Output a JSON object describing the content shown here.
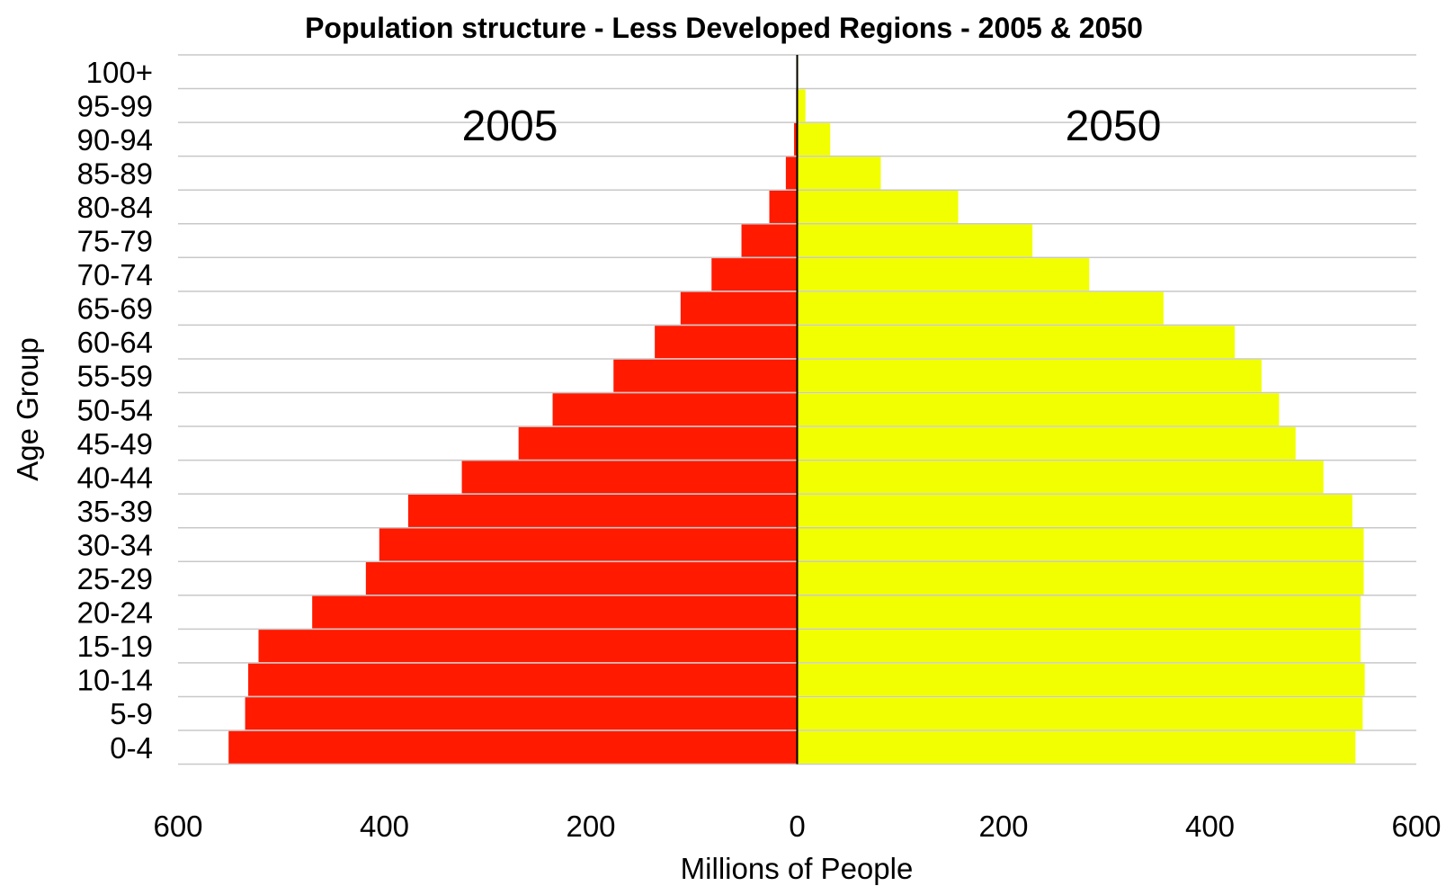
{
  "chart_data": {
    "type": "bar",
    "orientation": "horizontal",
    "title": "Population structure - Less Developed Regions - 2005 & 2050",
    "xlabel": "Millions of People",
    "ylabel": "Age Group",
    "categories": [
      "0-4",
      "5-9",
      "10-14",
      "15-19",
      "20-24",
      "25-29",
      "30-34",
      "35-39",
      "40-44",
      "45-49",
      "50-54",
      "55-59",
      "60-64",
      "65-69",
      "70-74",
      "75-79",
      "80-84",
      "85-89",
      "90-94",
      "95-99",
      "100+"
    ],
    "series": [
      {
        "name": "2005",
        "side": "left",
        "color": "#ff1a00",
        "values": [
          551,
          535,
          532,
          522,
          470,
          418,
          405,
          377,
          325,
          270,
          237,
          178,
          138,
          113,
          83,
          54,
          27,
          11,
          3,
          1,
          0
        ]
      },
      {
        "name": "2050",
        "side": "right",
        "color": "#f2ff00",
        "values": [
          541,
          548,
          550,
          546,
          546,
          549,
          549,
          538,
          510,
          483,
          467,
          450,
          424,
          355,
          283,
          228,
          156,
          81,
          32,
          8,
          1
        ]
      }
    ],
    "xlim": [
      -600,
      600
    ],
    "x_ticks": [
      -600,
      -400,
      -200,
      0,
      200,
      400,
      600
    ],
    "x_tick_labels": [
      "600",
      "400",
      "200",
      "0",
      "200",
      "400",
      "600"
    ],
    "annotations": [
      "2005",
      "2050"
    ],
    "grid": "horizontal",
    "legend": "none"
  }
}
